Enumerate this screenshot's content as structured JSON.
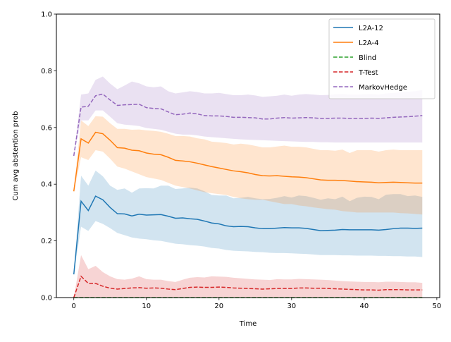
{
  "chart_data": {
    "type": "line",
    "title": "",
    "xlabel": "Time",
    "ylabel": "Cum avg abstention prob",
    "xlim": [
      -2.4,
      50.4
    ],
    "ylim": [
      0.0,
      1.0
    ],
    "xticks": [
      0,
      10,
      20,
      30,
      40,
      50
    ],
    "yticks": [
      0.0,
      0.2,
      0.4,
      0.6,
      0.8,
      1.0
    ],
    "grid": false,
    "legend_position": "top-right",
    "x": [
      0,
      1,
      2,
      3,
      4,
      5,
      6,
      7,
      8,
      9,
      10,
      11,
      12,
      13,
      14,
      15,
      16,
      17,
      18,
      19,
      20,
      21,
      22,
      23,
      24,
      25,
      26,
      27,
      28,
      29,
      30,
      31,
      32,
      33,
      34,
      35,
      36,
      37,
      38,
      39,
      40,
      41,
      42,
      43,
      44,
      45,
      46,
      47,
      48
    ],
    "series": [
      {
        "name": "L2A-12",
        "color": "#1f77b4",
        "style": "solid",
        "values": [
          0.082,
          0.34,
          0.307,
          0.358,
          0.345,
          0.318,
          0.296,
          0.295,
          0.288,
          0.294,
          0.291,
          0.292,
          0.293,
          0.287,
          0.28,
          0.281,
          0.278,
          0.276,
          0.27,
          0.263,
          0.26,
          0.253,
          0.25,
          0.251,
          0.25,
          0.246,
          0.243,
          0.243,
          0.245,
          0.247,
          0.246,
          0.246,
          0.244,
          0.24,
          0.236,
          0.237,
          0.238,
          0.24,
          0.239,
          0.239,
          0.239,
          0.239,
          0.238,
          0.24,
          0.243,
          0.245,
          0.245,
          0.244,
          0.245
        ],
        "lower": [
          0.08,
          0.25,
          0.235,
          0.27,
          0.26,
          0.245,
          0.228,
          0.22,
          0.212,
          0.208,
          0.206,
          0.202,
          0.2,
          0.195,
          0.19,
          0.188,
          0.185,
          0.183,
          0.18,
          0.175,
          0.173,
          0.168,
          0.165,
          0.164,
          0.163,
          0.161,
          0.16,
          0.158,
          0.157,
          0.157,
          0.156,
          0.155,
          0.154,
          0.152,
          0.15,
          0.15,
          0.15,
          0.149,
          0.149,
          0.148,
          0.148,
          0.148,
          0.147,
          0.147,
          0.146,
          0.146,
          0.145,
          0.145,
          0.143
        ],
        "upper": [
          0.085,
          0.43,
          0.395,
          0.448,
          0.428,
          0.395,
          0.38,
          0.385,
          0.37,
          0.385,
          0.386,
          0.385,
          0.395,
          0.395,
          0.383,
          0.385,
          0.388,
          0.385,
          0.375,
          0.362,
          0.36,
          0.36,
          0.35,
          0.352,
          0.355,
          0.35,
          0.347,
          0.348,
          0.352,
          0.358,
          0.353,
          0.36,
          0.358,
          0.352,
          0.345,
          0.35,
          0.347,
          0.356,
          0.34,
          0.352,
          0.356,
          0.355,
          0.347,
          0.363,
          0.365,
          0.365,
          0.358,
          0.36,
          0.355
        ]
      },
      {
        "name": "L2A-4",
        "color": "#ff7f0e",
        "style": "solid",
        "values": [
          0.375,
          0.56,
          0.545,
          0.583,
          0.578,
          0.555,
          0.529,
          0.527,
          0.52,
          0.518,
          0.51,
          0.506,
          0.504,
          0.495,
          0.484,
          0.482,
          0.479,
          0.474,
          0.468,
          0.462,
          0.457,
          0.452,
          0.447,
          0.444,
          0.44,
          0.434,
          0.43,
          0.429,
          0.43,
          0.428,
          0.426,
          0.425,
          0.423,
          0.419,
          0.415,
          0.414,
          0.414,
          0.413,
          0.411,
          0.409,
          0.408,
          0.407,
          0.405,
          0.406,
          0.407,
          0.406,
          0.405,
          0.404,
          0.404
        ],
        "lower": [
          0.37,
          0.495,
          0.485,
          0.52,
          0.515,
          0.49,
          0.462,
          0.455,
          0.445,
          0.435,
          0.425,
          0.42,
          0.415,
          0.405,
          0.395,
          0.39,
          0.385,
          0.378,
          0.372,
          0.368,
          0.365,
          0.362,
          0.355,
          0.35,
          0.347,
          0.345,
          0.345,
          0.34,
          0.335,
          0.33,
          0.33,
          0.325,
          0.322,
          0.318,
          0.315,
          0.312,
          0.31,
          0.305,
          0.303,
          0.3,
          0.3,
          0.3,
          0.3,
          0.3,
          0.3,
          0.298,
          0.297,
          0.295,
          0.293
        ],
        "upper": [
          0.38,
          0.625,
          0.605,
          0.64,
          0.638,
          0.615,
          0.595,
          0.595,
          0.592,
          0.593,
          0.59,
          0.588,
          0.585,
          0.578,
          0.57,
          0.57,
          0.568,
          0.562,
          0.558,
          0.55,
          0.548,
          0.545,
          0.54,
          0.543,
          0.54,
          0.535,
          0.53,
          0.53,
          0.533,
          0.536,
          0.532,
          0.532,
          0.53,
          0.525,
          0.52,
          0.52,
          0.518,
          0.522,
          0.51,
          0.52,
          0.52,
          0.52,
          0.515,
          0.52,
          0.522,
          0.52,
          0.52,
          0.52,
          0.52
        ]
      },
      {
        "name": "Blind",
        "color": "#2ca02c",
        "style": "dashed",
        "values": [
          0,
          0,
          0,
          0,
          0,
          0,
          0,
          0,
          0,
          0,
          0,
          0,
          0,
          0,
          0,
          0,
          0,
          0,
          0,
          0,
          0,
          0,
          0,
          0,
          0,
          0,
          0,
          0,
          0,
          0,
          0,
          0,
          0,
          0,
          0,
          0,
          0,
          0,
          0,
          0,
          0,
          0,
          0,
          0,
          0,
          0,
          0,
          0,
          0
        ]
      },
      {
        "name": "T-Test",
        "color": "#d62728",
        "style": "dashed",
        "values": [
          0.0,
          0.075,
          0.05,
          0.05,
          0.04,
          0.033,
          0.03,
          0.032,
          0.034,
          0.035,
          0.033,
          0.034,
          0.033,
          0.03,
          0.028,
          0.032,
          0.036,
          0.037,
          0.036,
          0.036,
          0.037,
          0.036,
          0.034,
          0.033,
          0.032,
          0.031,
          0.03,
          0.031,
          0.032,
          0.032,
          0.032,
          0.034,
          0.034,
          0.033,
          0.033,
          0.032,
          0.031,
          0.03,
          0.029,
          0.028,
          0.027,
          0.027,
          0.026,
          0.028,
          0.028,
          0.028,
          0.027,
          0.027,
          0.027
        ],
        "lower": [
          0,
          0,
          0,
          0,
          0,
          0,
          0,
          0,
          0,
          0,
          0,
          0,
          0,
          0,
          0,
          0,
          0,
          0,
          0,
          0,
          0,
          0,
          0,
          0,
          0,
          0,
          0,
          0,
          0,
          0,
          0,
          0,
          0,
          0,
          0,
          0,
          0,
          0,
          0,
          0,
          0,
          0,
          0,
          0,
          0,
          0,
          0,
          0,
          0
        ],
        "upper": [
          0.0,
          0.15,
          0.1,
          0.112,
          0.09,
          0.075,
          0.065,
          0.063,
          0.067,
          0.075,
          0.065,
          0.063,
          0.063,
          0.058,
          0.055,
          0.063,
          0.07,
          0.072,
          0.071,
          0.075,
          0.074,
          0.073,
          0.07,
          0.068,
          0.066,
          0.064,
          0.063,
          0.062,
          0.065,
          0.064,
          0.064,
          0.066,
          0.065,
          0.064,
          0.063,
          0.062,
          0.06,
          0.058,
          0.057,
          0.056,
          0.055,
          0.055,
          0.054,
          0.056,
          0.056,
          0.055,
          0.054,
          0.054,
          0.052
        ]
      },
      {
        "name": "MarkovHedge",
        "color": "#9467bd",
        "style": "dashed",
        "values": [
          0.5,
          0.672,
          0.675,
          0.712,
          0.718,
          0.697,
          0.678,
          0.68,
          0.681,
          0.682,
          0.67,
          0.667,
          0.666,
          0.655,
          0.645,
          0.647,
          0.651,
          0.648,
          0.642,
          0.641,
          0.641,
          0.639,
          0.636,
          0.636,
          0.635,
          0.634,
          0.63,
          0.63,
          0.633,
          0.635,
          0.633,
          0.634,
          0.635,
          0.634,
          0.632,
          0.632,
          0.633,
          0.633,
          0.632,
          0.632,
          0.632,
          0.633,
          0.632,
          0.634,
          0.636,
          0.637,
          0.638,
          0.64,
          0.642
        ],
        "lower": [
          0.5,
          0.625,
          0.625,
          0.66,
          0.66,
          0.638,
          0.615,
          0.61,
          0.608,
          0.605,
          0.598,
          0.595,
          0.592,
          0.585,
          0.578,
          0.575,
          0.575,
          0.572,
          0.568,
          0.566,
          0.564,
          0.562,
          0.56,
          0.558,
          0.557,
          0.556,
          0.555,
          0.554,
          0.553,
          0.552,
          0.551,
          0.55,
          0.549,
          0.549,
          0.548,
          0.548,
          0.547,
          0.547,
          0.547,
          0.547,
          0.547,
          0.547,
          0.547,
          0.547,
          0.547,
          0.547,
          0.547,
          0.547,
          0.547
        ],
        "upper": [
          0.5,
          0.716,
          0.72,
          0.768,
          0.78,
          0.755,
          0.735,
          0.748,
          0.762,
          0.756,
          0.745,
          0.742,
          0.745,
          0.728,
          0.72,
          0.724,
          0.728,
          0.725,
          0.72,
          0.72,
          0.722,
          0.718,
          0.714,
          0.714,
          0.716,
          0.713,
          0.708,
          0.71,
          0.712,
          0.716,
          0.712,
          0.716,
          0.718,
          0.716,
          0.714,
          0.715,
          0.717,
          0.718,
          0.716,
          0.716,
          0.717,
          0.718,
          0.716,
          0.72,
          0.722,
          0.724,
          0.726,
          0.728,
          0.732
        ]
      }
    ]
  }
}
